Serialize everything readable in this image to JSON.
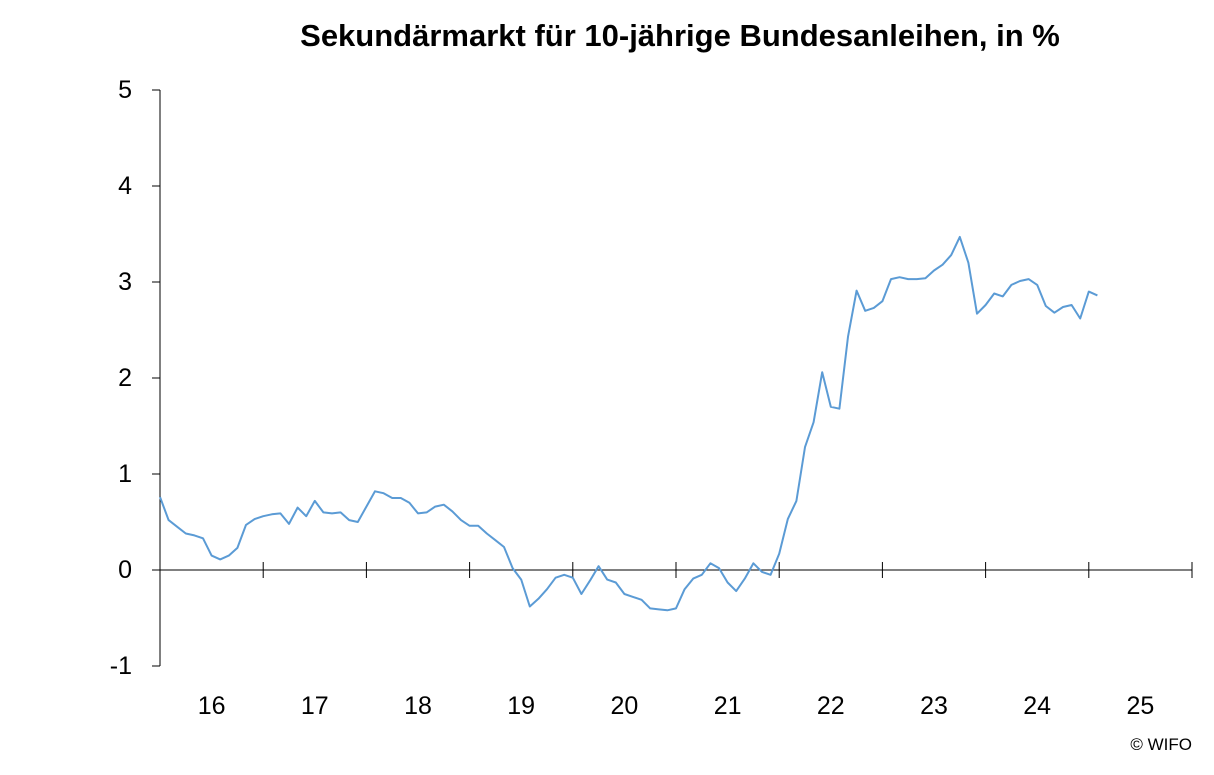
{
  "chart_data": {
    "type": "line",
    "title": "Sekundärmarkt für 10-jährige Bundesanleihen, in %",
    "xlabel": "",
    "ylabel": "",
    "ylim": [
      -1,
      5
    ],
    "yticks": [
      -1,
      0,
      1,
      2,
      3,
      4,
      5
    ],
    "xlim": [
      2016,
      2026
    ],
    "xtick_labels": [
      "16",
      "17",
      "18",
      "19",
      "20",
      "21",
      "22",
      "23",
      "24",
      "25"
    ],
    "grid": false,
    "legend": "none",
    "line_color": "#5b9bd5",
    "series": [
      {
        "frequency": "monthly",
        "start": "2016-01",
        "values": [
          0.76,
          0.52,
          0.45,
          0.38,
          0.36,
          0.33,
          0.15,
          0.11,
          0.15,
          0.23,
          0.47,
          0.53,
          0.56,
          0.58,
          0.59,
          0.48,
          0.65,
          0.56,
          0.72,
          0.6,
          0.59,
          0.6,
          0.52,
          0.5,
          0.66,
          0.82,
          0.8,
          0.75,
          0.75,
          0.7,
          0.59,
          0.6,
          0.66,
          0.68,
          0.61,
          0.52,
          0.46,
          0.46,
          0.38,
          0.31,
          0.24,
          0.02,
          -0.1,
          -0.38,
          -0.3,
          -0.2,
          -0.08,
          -0.05,
          -0.08,
          -0.25,
          -0.11,
          0.04,
          -0.1,
          -0.13,
          -0.25,
          -0.28,
          -0.31,
          -0.4,
          -0.41,
          -0.42,
          -0.4,
          -0.2,
          -0.09,
          -0.05,
          0.07,
          0.02,
          -0.13,
          -0.22,
          -0.09,
          0.07,
          -0.02,
          -0.05,
          0.17,
          0.53,
          0.72,
          1.28,
          1.54,
          2.06,
          1.7,
          1.68,
          2.43,
          2.91,
          2.7,
          2.73,
          2.8,
          3.03,
          3.05,
          3.03,
          3.03,
          3.04,
          3.12,
          3.18,
          3.28,
          3.47,
          3.2,
          2.67,
          2.76,
          2.88,
          2.85,
          2.97,
          3.01,
          3.03,
          2.97,
          2.75,
          2.68,
          2.74,
          2.76,
          2.62,
          2.9,
          2.86
        ]
      }
    ]
  },
  "footer": {
    "copyright": "© WIFO"
  }
}
